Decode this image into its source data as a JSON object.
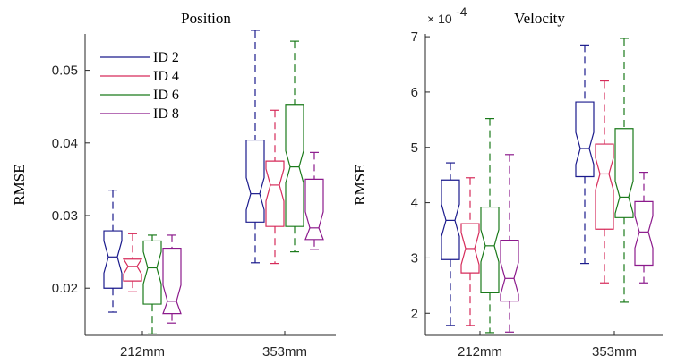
{
  "chart_data": [
    {
      "type": "boxplot",
      "title": "Position",
      "xlabel": "",
      "ylabel": "RMSE",
      "categories": [
        "212mm",
        "353mm"
      ],
      "ylim": [
        0.0135,
        0.055
      ],
      "yticks": [
        0.02,
        0.03,
        0.04,
        0.05
      ],
      "ytick_labels": [
        "0.02",
        "0.03",
        "0.04",
        "0.05"
      ],
      "notched": true,
      "legend": {
        "placement": "top-left",
        "entries": [
          "ID 2",
          "ID 4",
          "ID 6",
          "ID 8"
        ]
      },
      "series": [
        {
          "name": "ID 2",
          "color": "#1a1a8c",
          "boxes": [
            {
              "min": 0.0167,
              "q1": 0.02,
              "median": 0.0243,
              "q3": 0.0279,
              "max": 0.0335
            },
            {
              "min": 0.0235,
              "q1": 0.0291,
              "median": 0.033,
              "q3": 0.0404,
              "max": 0.0555
            }
          ]
        },
        {
          "name": "ID 4",
          "color": "#d62b5a",
          "boxes": [
            {
              "min": 0.0195,
              "q1": 0.021,
              "median": 0.023,
              "q3": 0.024,
              "max": 0.0275
            },
            {
              "min": 0.0234,
              "q1": 0.0285,
              "median": 0.0342,
              "q3": 0.0375,
              "max": 0.0445
            }
          ]
        },
        {
          "name": "ID 6",
          "color": "#1a7a1a",
          "boxes": [
            {
              "min": 0.0137,
              "q1": 0.0178,
              "median": 0.0228,
              "q3": 0.0265,
              "max": 0.0273
            },
            {
              "min": 0.025,
              "q1": 0.0285,
              "median": 0.0367,
              "q3": 0.0453,
              "max": 0.054
            }
          ]
        },
        {
          "name": "ID 8",
          "color": "#8c1a8c",
          "boxes": [
            {
              "min": 0.0152,
              "q1": 0.0165,
              "median": 0.0182,
              "q3": 0.0255,
              "max": 0.0273
            },
            {
              "min": 0.0253,
              "q1": 0.0267,
              "median": 0.0283,
              "q3": 0.035,
              "max": 0.0387
            }
          ]
        }
      ]
    },
    {
      "type": "boxplot",
      "title": "Velocity",
      "xlabel": "",
      "ylabel": "RMSE",
      "categories": [
        "212mm",
        "353mm"
      ],
      "ylim": [
        1.6,
        7.05
      ],
      "yticks": [
        2,
        3,
        4,
        5,
        6,
        7
      ],
      "ytick_labels": [
        "2",
        "3",
        "4",
        "5",
        "6",
        "7"
      ],
      "exponent_label": "× 10",
      "exponent_power": "-4",
      "notched": true,
      "series": [
        {
          "name": "ID 2",
          "color": "#1a1a8c",
          "boxes": [
            {
              "min": 1.78,
              "q1": 2.97,
              "median": 3.68,
              "q3": 4.41,
              "max": 4.72
            },
            {
              "min": 2.9,
              "q1": 4.47,
              "median": 4.98,
              "q3": 5.82,
              "max": 6.85
            }
          ]
        },
        {
          "name": "ID 4",
          "color": "#d62b5a",
          "boxes": [
            {
              "min": 1.78,
              "q1": 2.73,
              "median": 3.17,
              "q3": 3.62,
              "max": 4.45
            },
            {
              "min": 2.55,
              "q1": 3.52,
              "median": 4.52,
              "q3": 5.06,
              "max": 6.2
            }
          ]
        },
        {
          "name": "ID 6",
          "color": "#1a7a1a",
          "boxes": [
            {
              "min": 1.65,
              "q1": 2.37,
              "median": 3.22,
              "q3": 3.92,
              "max": 5.52
            },
            {
              "min": 2.2,
              "q1": 3.73,
              "median": 4.1,
              "q3": 5.34,
              "max": 6.97
            }
          ]
        },
        {
          "name": "ID 8",
          "color": "#8c1a8c",
          "boxes": [
            {
              "min": 1.66,
              "q1": 2.22,
              "median": 2.63,
              "q3": 3.32,
              "max": 4.87
            },
            {
              "min": 2.55,
              "q1": 2.87,
              "median": 3.47,
              "q3": 4.02,
              "max": 4.55
            }
          ]
        }
      ]
    }
  ]
}
